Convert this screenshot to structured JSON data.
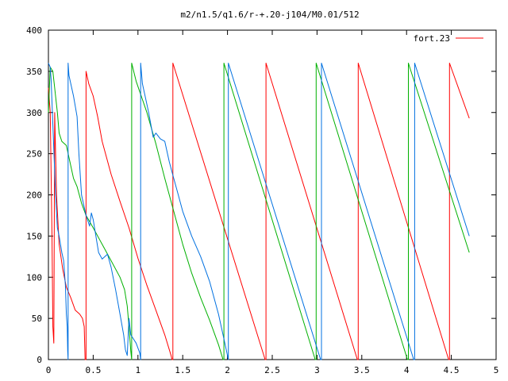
{
  "chart_data": {
    "type": "line",
    "title": "m2/n1.5/q1.6/r-+.20-j104/M0.01/512",
    "xlabel": "",
    "ylabel": "",
    "xlim": [
      0,
      5
    ],
    "ylim": [
      0,
      400
    ],
    "x_ticks": [
      0,
      0.5,
      1,
      1.5,
      2,
      2.5,
      3,
      3.5,
      4,
      4.5,
      5
    ],
    "x_tick_labels": [
      "0",
      "0.5",
      "1",
      "1.5",
      "2",
      "2.5",
      "3",
      "3.5",
      "4",
      "4.5",
      "5"
    ],
    "y_ticks": [
      0,
      50,
      100,
      150,
      200,
      250,
      300,
      350,
      400
    ],
    "y_tick_labels": [
      "0",
      "50",
      "100",
      "150",
      "200",
      "250",
      "300",
      "350",
      "400"
    ],
    "grid": false,
    "legend_position": "top-right",
    "legend": [
      {
        "label": "fort.23",
        "color": "#ff0000"
      }
    ],
    "series": [
      {
        "name": "fort.23",
        "color": "#ff0000",
        "points": [
          [
            0.0,
            330
          ],
          [
            0.02,
            300
          ],
          [
            0.04,
            150
          ],
          [
            0.05,
            40
          ],
          [
            0.06,
            20
          ],
          [
            0.07,
            300
          ],
          [
            0.09,
            200
          ],
          [
            0.12,
            140
          ],
          [
            0.16,
            110
          ],
          [
            0.2,
            88
          ],
          [
            0.25,
            75
          ],
          [
            0.3,
            60
          ],
          [
            0.35,
            55
          ],
          [
            0.38,
            50
          ],
          [
            0.4,
            40
          ],
          [
            0.41,
            0
          ],
          [
            0.42,
            0
          ],
          [
            0.42,
            350
          ],
          [
            0.45,
            335
          ],
          [
            0.5,
            320
          ],
          [
            0.55,
            295
          ],
          [
            0.6,
            265
          ],
          [
            0.7,
            225
          ],
          [
            0.8,
            192
          ],
          [
            0.9,
            160
          ],
          [
            1.0,
            123
          ],
          [
            1.1,
            90
          ],
          [
            1.2,
            60
          ],
          [
            1.3,
            30
          ],
          [
            1.37,
            5
          ],
          [
            1.38,
            0
          ],
          [
            1.39,
            0
          ],
          [
            1.39,
            360
          ],
          [
            2.42,
            0
          ],
          [
            2.43,
            0
          ],
          [
            2.43,
            360
          ],
          [
            3.45,
            0
          ],
          [
            3.46,
            0
          ],
          [
            3.46,
            360
          ],
          [
            4.47,
            0
          ],
          [
            4.48,
            0
          ],
          [
            4.48,
            360
          ],
          [
            4.7,
            293
          ]
        ]
      },
      {
        "name": "",
        "color": "#00b000",
        "points": [
          [
            0.0,
            300
          ],
          [
            0.02,
            355
          ],
          [
            0.05,
            350
          ],
          [
            0.08,
            320
          ],
          [
            0.1,
            300
          ],
          [
            0.12,
            275
          ],
          [
            0.15,
            265
          ],
          [
            0.2,
            260
          ],
          [
            0.24,
            240
          ],
          [
            0.28,
            220
          ],
          [
            0.32,
            210
          ],
          [
            0.37,
            190
          ],
          [
            0.42,
            175
          ],
          [
            0.5,
            160
          ],
          [
            0.6,
            140
          ],
          [
            0.7,
            120
          ],
          [
            0.8,
            100
          ],
          [
            0.85,
            85
          ],
          [
            0.88,
            65
          ],
          [
            0.9,
            40
          ],
          [
            0.92,
            10
          ],
          [
            0.93,
            0
          ],
          [
            0.93,
            360
          ],
          [
            0.98,
            338
          ],
          [
            1.1,
            300
          ],
          [
            1.2,
            262
          ],
          [
            1.3,
            220
          ],
          [
            1.4,
            180
          ],
          [
            1.5,
            140
          ],
          [
            1.6,
            105
          ],
          [
            1.7,
            75
          ],
          [
            1.8,
            48
          ],
          [
            1.9,
            18
          ],
          [
            1.95,
            0
          ],
          [
            1.96,
            0
          ],
          [
            1.96,
            360
          ],
          [
            2.98,
            0
          ],
          [
            2.99,
            0
          ],
          [
            2.99,
            360
          ],
          [
            4.01,
            0
          ],
          [
            4.02,
            0
          ],
          [
            4.02,
            360
          ],
          [
            4.7,
            130
          ]
        ]
      },
      {
        "name": "",
        "color": "#0070e0",
        "points": [
          [
            0.0,
            360
          ],
          [
            0.02,
            355
          ],
          [
            0.03,
            340
          ],
          [
            0.06,
            255
          ],
          [
            0.08,
            200
          ],
          [
            0.1,
            160
          ],
          [
            0.12,
            150
          ],
          [
            0.15,
            130
          ],
          [
            0.17,
            120
          ],
          [
            0.19,
            90
          ],
          [
            0.2,
            55
          ],
          [
            0.21,
            40
          ],
          [
            0.215,
            10
          ],
          [
            0.22,
            0
          ],
          [
            0.22,
            360
          ],
          [
            0.23,
            345
          ],
          [
            0.28,
            320
          ],
          [
            0.32,
            295
          ],
          [
            0.34,
            250
          ],
          [
            0.37,
            200
          ],
          [
            0.42,
            175
          ],
          [
            0.46,
            162
          ],
          [
            0.48,
            178
          ],
          [
            0.5,
            170
          ],
          [
            0.53,
            150
          ],
          [
            0.56,
            130
          ],
          [
            0.6,
            122
          ],
          [
            0.66,
            128
          ],
          [
            0.7,
            112
          ],
          [
            0.75,
            85
          ],
          [
            0.8,
            55
          ],
          [
            0.84,
            30
          ],
          [
            0.86,
            12
          ],
          [
            0.88,
            5
          ],
          [
            0.9,
            50
          ],
          [
            0.92,
            30
          ],
          [
            0.95,
            25
          ],
          [
            0.98,
            20
          ],
          [
            1.02,
            8
          ],
          [
            1.03,
            0
          ],
          [
            1.03,
            360
          ],
          [
            1.05,
            335
          ],
          [
            1.08,
            320
          ],
          [
            1.12,
            300
          ],
          [
            1.15,
            282
          ],
          [
            1.17,
            270
          ],
          [
            1.2,
            275
          ],
          [
            1.25,
            268
          ],
          [
            1.3,
            265
          ],
          [
            1.35,
            240
          ],
          [
            1.4,
            220
          ],
          [
            1.45,
            200
          ],
          [
            1.5,
            180
          ],
          [
            1.55,
            165
          ],
          [
            1.6,
            150
          ],
          [
            1.7,
            125
          ],
          [
            1.8,
            95
          ],
          [
            1.9,
            55
          ],
          [
            1.95,
            30
          ],
          [
            2.0,
            5
          ],
          [
            2.01,
            0
          ],
          [
            2.01,
            360
          ],
          [
            3.04,
            0
          ],
          [
            3.05,
            0
          ],
          [
            3.05,
            360
          ],
          [
            4.08,
            0
          ],
          [
            4.09,
            0
          ],
          [
            4.09,
            360
          ],
          [
            4.7,
            150
          ]
        ]
      }
    ]
  }
}
